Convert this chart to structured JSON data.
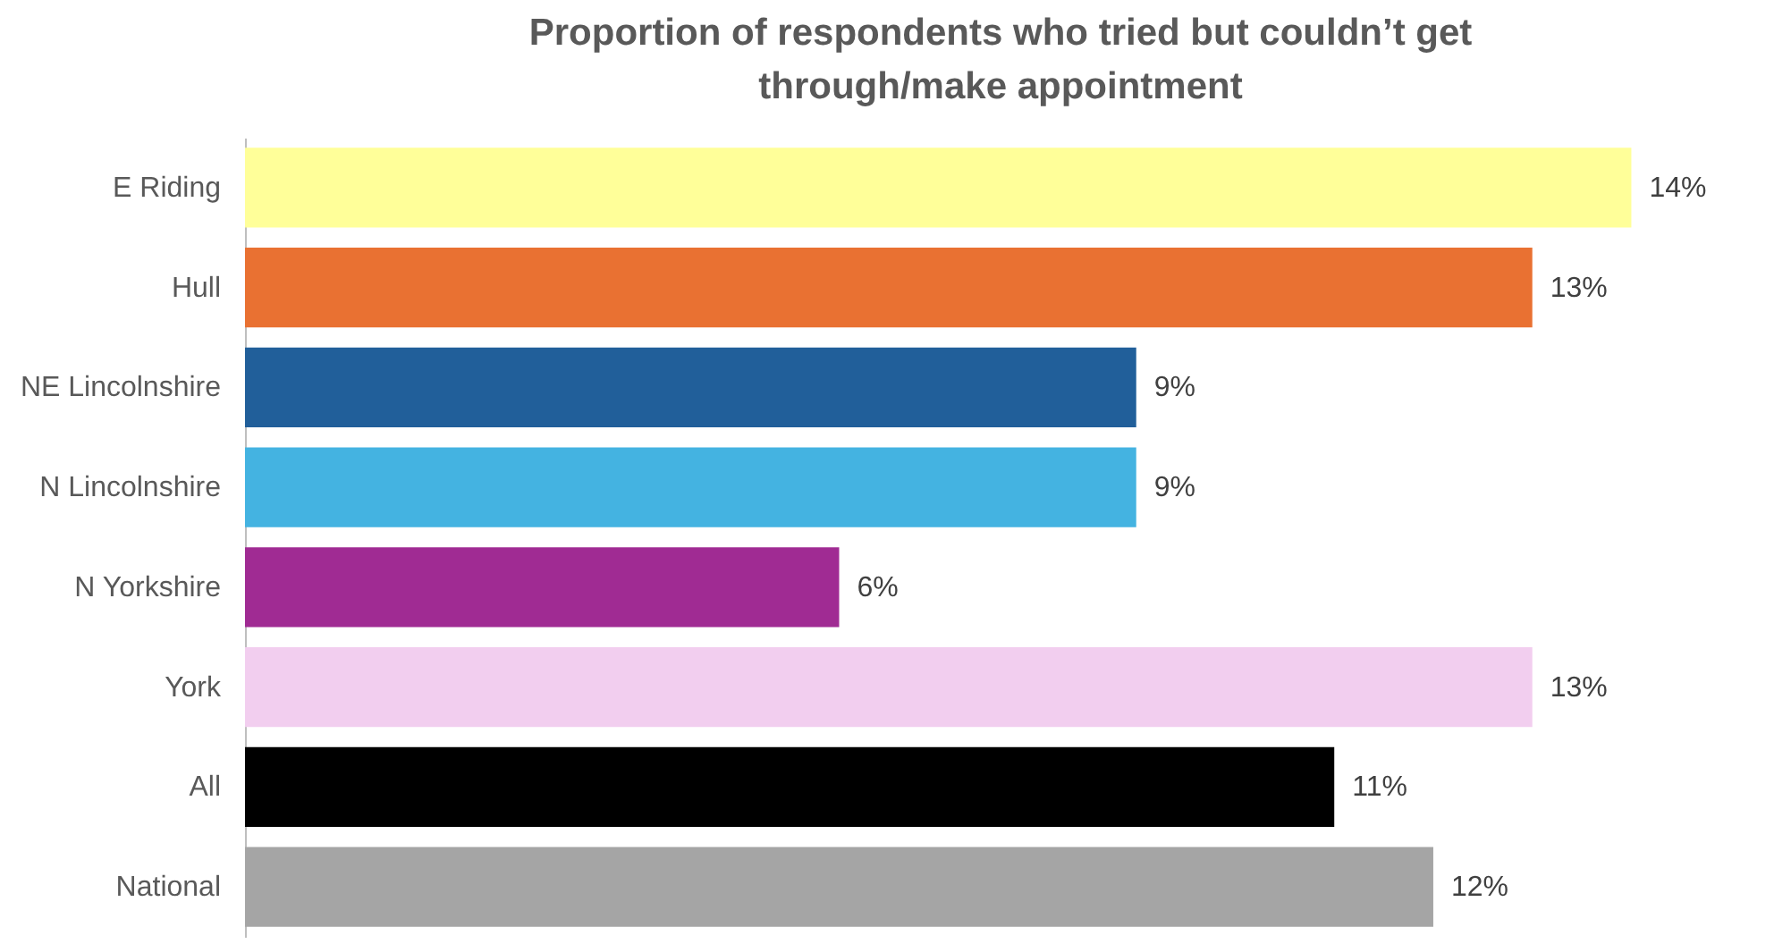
{
  "chart_data": {
    "type": "bar",
    "orientation": "horizontal",
    "title": "Proportion of respondents who tried but couldn’t get through/make appointment",
    "categories": [
      "E Riding",
      "Hull",
      "NE Lincolnshire",
      "N Lincolnshire",
      "N Yorkshire",
      "York",
      "All",
      "National"
    ],
    "values": [
      14,
      13,
      9,
      9,
      6,
      13,
      11,
      12
    ],
    "colors": [
      "#ffff99",
      "#e97132",
      "#215f9a",
      "#44b3e1",
      "#a02b93",
      "#f2ceef",
      "#000000",
      "#a5a5a5"
    ],
    "value_labels": [
      "14%",
      "13%",
      "9%",
      "9%",
      "6%",
      "13%",
      "11%",
      "12%"
    ],
    "grid": false
  }
}
